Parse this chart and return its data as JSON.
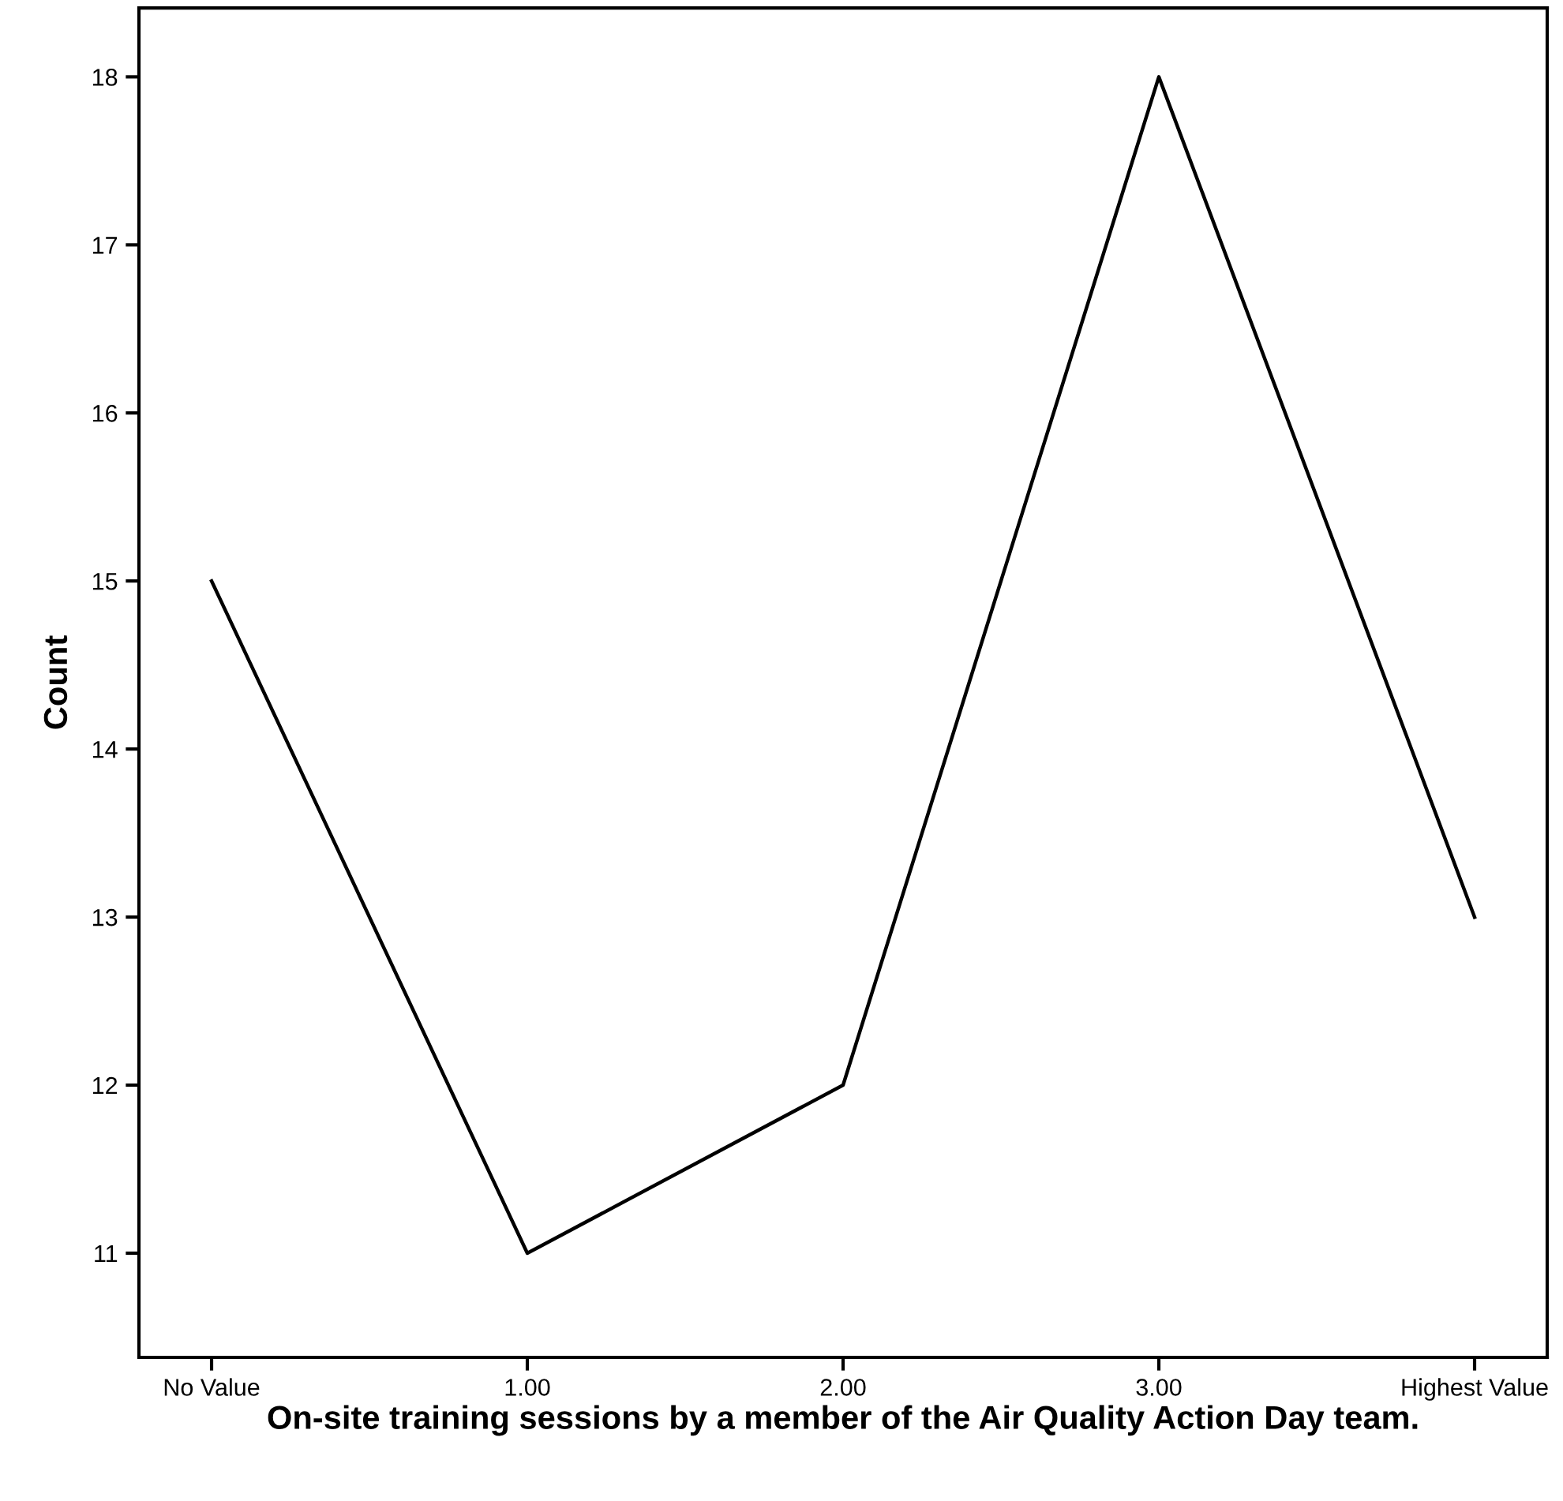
{
  "chart_data": {
    "type": "line",
    "xlabel": "On-site training sessions by a member of the Air Quality Action Day team.",
    "ylabel": "Count",
    "categories": [
      "No Value",
      "1.00",
      "2.00",
      "3.00",
      "Highest Value"
    ],
    "series": [
      {
        "color": "#000000",
        "values": [
          15,
          11,
          12,
          18,
          13
        ]
      }
    ],
    "ylim": [
      10.38,
      18.41
    ],
    "yticks": [
      11,
      12,
      13,
      14,
      15,
      16,
      17,
      18
    ],
    "grid": false,
    "legend": false,
    "marker": "none",
    "line_style": "solid"
  }
}
